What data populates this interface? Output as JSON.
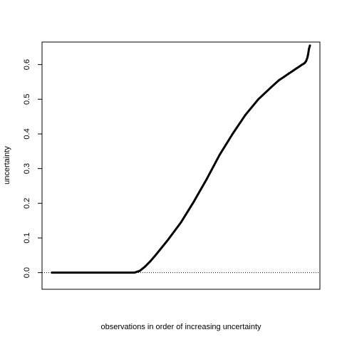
{
  "chart_data": {
    "type": "line",
    "xlabel": "observations in order of increasing uncertainty",
    "ylabel": "uncertainty",
    "ylim": [
      -0.048,
      0.665
    ],
    "yticks": [
      0.0,
      0.1,
      0.2,
      0.3,
      0.4,
      0.5,
      0.6
    ],
    "ytick_labels": [
      "0.0",
      "0.1",
      "0.2",
      "0.3",
      "0.4",
      "0.5",
      "0.6"
    ],
    "xticks": [],
    "grid": false,
    "reference_line": {
      "y": 0.0,
      "style": "dotted"
    },
    "series": [
      {
        "x": [
          0,
          10,
          20,
          30,
          32,
          34,
          36,
          38,
          40,
          45,
          50,
          55,
          60,
          65,
          70,
          75,
          80,
          85,
          88,
          90,
          92,
          93,
          94,
          95,
          96,
          97,
          97.5,
          98,
          98.5,
          99,
          99.3,
          99.6,
          100
        ],
        "y": [
          0.0,
          0.0,
          0.0,
          0.0,
          0.0,
          0.005,
          0.017,
          0.032,
          0.049,
          0.095,
          0.145,
          0.205,
          0.27,
          0.34,
          0.4,
          0.455,
          0.5,
          0.535,
          0.555,
          0.565,
          0.575,
          0.58,
          0.585,
          0.59,
          0.595,
          0.6,
          0.602,
          0.605,
          0.61,
          0.62,
          0.63,
          0.645,
          0.655
        ]
      }
    ]
  }
}
